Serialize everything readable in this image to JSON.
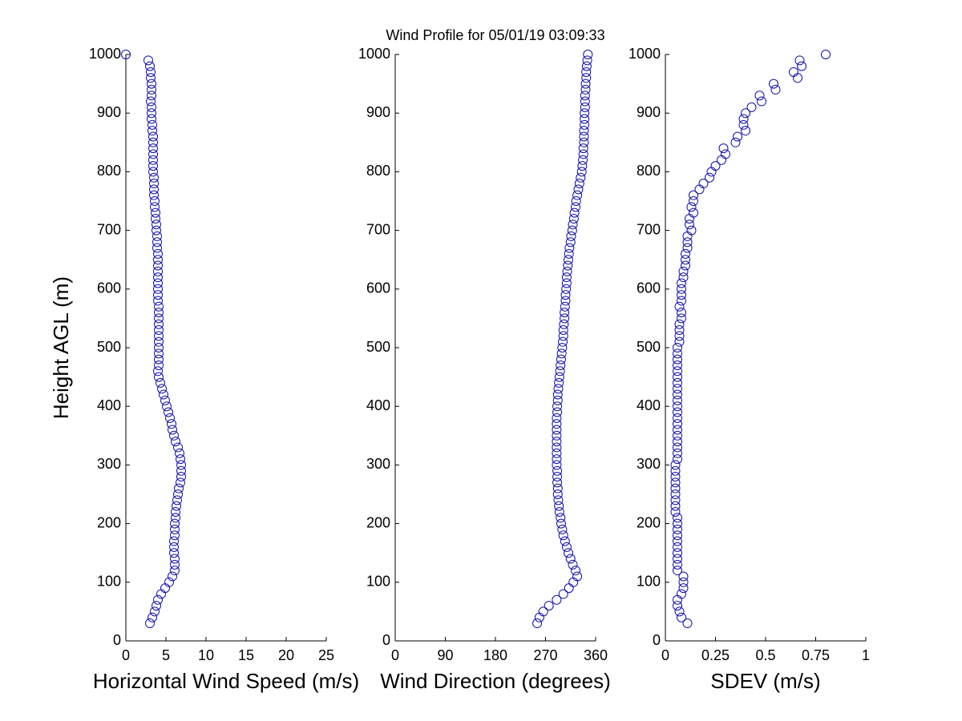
{
  "chart_data": [
    {
      "type": "scatter",
      "x_label": "Horizontal Wind Speed (m/s)",
      "y_label": "Height AGL (m)",
      "color": "#1010b0",
      "xlim": [
        0,
        25
      ],
      "xticks": [
        0,
        5,
        10,
        15,
        20,
        25
      ],
      "ylim": [
        0,
        1000
      ],
      "yticks": [
        0,
        100,
        200,
        300,
        400,
        500,
        600,
        700,
        800,
        900,
        1000
      ],
      "x": [
        3.0,
        3.3,
        3.6,
        3.8,
        4.0,
        4.4,
        4.9,
        5.4,
        5.8,
        6.1,
        6.1,
        6.1,
        6.0,
        6.0,
        6.0,
        6.1,
        6.1,
        6.1,
        6.2,
        6.2,
        6.3,
        6.4,
        6.5,
        6.6,
        6.8,
        6.9,
        6.9,
        6.9,
        6.8,
        6.7,
        6.5,
        6.2,
        6.0,
        5.8,
        5.7,
        5.5,
        5.3,
        5.1,
        4.9,
        4.7,
        4.5,
        4.3,
        4.1,
        4.0,
        4.1,
        4.1,
        4.1,
        4.1,
        4.1,
        4.1,
        4.1,
        4.1,
        4.1,
        4.1,
        4.1,
        4.0,
        4.0,
        4.0,
        4.0,
        4.0,
        4.0,
        4.0,
        4.0,
        4.0,
        3.9,
        3.9,
        3.9,
        3.8,
        3.8,
        3.7,
        3.7,
        3.6,
        3.6,
        3.5,
        3.5,
        3.5,
        3.5,
        3.4,
        3.4,
        3.4,
        3.4,
        3.4,
        3.4,
        3.4,
        3.3,
        3.3,
        3.2,
        3.2,
        3.2,
        3.1,
        3.2,
        3.2,
        3.2,
        3.1,
        3.1,
        3.0,
        2.8,
        0
      ],
      "y": [
        30,
        40,
        50,
        60,
        70,
        80,
        90,
        100,
        110,
        120,
        130,
        140,
        150,
        160,
        170,
        180,
        190,
        200,
        210,
        220,
        230,
        240,
        250,
        260,
        270,
        280,
        290,
        300,
        310,
        320,
        330,
        340,
        350,
        360,
        370,
        380,
        390,
        400,
        410,
        420,
        430,
        440,
        450,
        460,
        470,
        480,
        490,
        500,
        510,
        520,
        530,
        540,
        550,
        560,
        570,
        580,
        590,
        600,
        610,
        620,
        630,
        640,
        650,
        660,
        670,
        680,
        690,
        700,
        710,
        720,
        730,
        740,
        750,
        760,
        770,
        780,
        790,
        800,
        810,
        820,
        830,
        840,
        850,
        860,
        870,
        880,
        890,
        900,
        910,
        920,
        930,
        940,
        950,
        960,
        970,
        980,
        990,
        1000
      ]
    },
    {
      "type": "scatter",
      "title": "Wind Profile for  05/01/19 03:09:33",
      "x_label": "Wind Direction (degrees)",
      "color": "#1010b0",
      "xlim": [
        0,
        360
      ],
      "xticks": [
        0,
        90,
        180,
        270,
        360
      ],
      "ylim": [
        0,
        1000
      ],
      "yticks": [
        0,
        100,
        200,
        300,
        400,
        500,
        600,
        700,
        800,
        900,
        1000
      ],
      "x": [
        255,
        259,
        266,
        276,
        290,
        302,
        312,
        320,
        327,
        324,
        319,
        315,
        311,
        308,
        305,
        302,
        300,
        298,
        297,
        295,
        294,
        293,
        292,
        292,
        291,
        291,
        291,
        290,
        290,
        290,
        290,
        290,
        290,
        290,
        290,
        290,
        291,
        291,
        292,
        292,
        293,
        294,
        295,
        296,
        297,
        298,
        299,
        300,
        301,
        302,
        302,
        303,
        304,
        304,
        305,
        306,
        306,
        307,
        308,
        308,
        309,
        310,
        311,
        312,
        313,
        315,
        316,
        318,
        319,
        321,
        322,
        324,
        325,
        327,
        329,
        331,
        333,
        335,
        336,
        337,
        338,
        338,
        339,
        339,
        339,
        340,
        340,
        340,
        341,
        341,
        341,
        342,
        342,
        343,
        343,
        344,
        345,
        346
      ],
      "y": [
        30,
        40,
        50,
        60,
        70,
        80,
        90,
        100,
        110,
        120,
        130,
        140,
        150,
        160,
        170,
        180,
        190,
        200,
        210,
        220,
        230,
        240,
        250,
        260,
        270,
        280,
        290,
        300,
        310,
        320,
        330,
        340,
        350,
        360,
        370,
        380,
        390,
        400,
        410,
        420,
        430,
        440,
        450,
        460,
        470,
        480,
        490,
        500,
        510,
        520,
        530,
        540,
        550,
        560,
        570,
        580,
        590,
        600,
        610,
        620,
        630,
        640,
        650,
        660,
        670,
        680,
        690,
        700,
        710,
        720,
        730,
        740,
        750,
        760,
        770,
        780,
        790,
        800,
        810,
        820,
        830,
        840,
        850,
        860,
        870,
        880,
        890,
        900,
        910,
        920,
        930,
        940,
        950,
        960,
        970,
        980,
        990,
        1000
      ]
    },
    {
      "type": "scatter",
      "x_label": "SDEV  (m/s)",
      "color": "#1010b0",
      "xlim": [
        0,
        1
      ],
      "xticks": [
        0,
        0.25,
        0.5,
        0.75,
        1
      ],
      "ylim": [
        0,
        1000
      ],
      "yticks": [
        0,
        100,
        200,
        300,
        400,
        500,
        600,
        700,
        800,
        900,
        1000
      ],
      "x": [
        0.11,
        0.08,
        0.07,
        0.06,
        0.06,
        0.08,
        0.09,
        0.09,
        0.09,
        0.06,
        0.06,
        0.06,
        0.06,
        0.06,
        0.06,
        0.06,
        0.06,
        0.06,
        0.06,
        0.05,
        0.05,
        0.05,
        0.05,
        0.05,
        0.05,
        0.05,
        0.05,
        0.05,
        0.06,
        0.06,
        0.06,
        0.06,
        0.06,
        0.06,
        0.06,
        0.06,
        0.06,
        0.06,
        0.06,
        0.06,
        0.06,
        0.06,
        0.06,
        0.06,
        0.06,
        0.06,
        0.06,
        0.06,
        0.07,
        0.07,
        0.07,
        0.07,
        0.08,
        0.08,
        0.07,
        0.08,
        0.08,
        0.08,
        0.08,
        0.09,
        0.09,
        0.1,
        0.1,
        0.1,
        0.11,
        0.11,
        0.11,
        0.13,
        0.12,
        0.12,
        0.14,
        0.13,
        0.14,
        0.14,
        0.17,
        0.19,
        0.22,
        0.23,
        0.25,
        0.28,
        0.3,
        0.29,
        0.35,
        0.36,
        0.4,
        0.39,
        0.39,
        0.4,
        0.43,
        0.48,
        0.47,
        0.55,
        0.54,
        0.66,
        0.64,
        0.68,
        0.67,
        0.8
      ],
      "y": [
        30,
        40,
        50,
        60,
        70,
        80,
        90,
        100,
        110,
        120,
        130,
        140,
        150,
        160,
        170,
        180,
        190,
        200,
        210,
        220,
        230,
        240,
        250,
        260,
        270,
        280,
        290,
        300,
        310,
        320,
        330,
        340,
        350,
        360,
        370,
        380,
        390,
        400,
        410,
        420,
        430,
        440,
        450,
        460,
        470,
        480,
        490,
        500,
        510,
        520,
        530,
        540,
        550,
        560,
        570,
        580,
        590,
        600,
        610,
        620,
        630,
        640,
        650,
        660,
        670,
        680,
        690,
        700,
        710,
        720,
        730,
        740,
        750,
        760,
        770,
        780,
        790,
        800,
        810,
        820,
        830,
        840,
        850,
        860,
        870,
        880,
        890,
        900,
        910,
        920,
        930,
        940,
        950,
        960,
        970,
        980,
        990,
        1000
      ]
    }
  ]
}
